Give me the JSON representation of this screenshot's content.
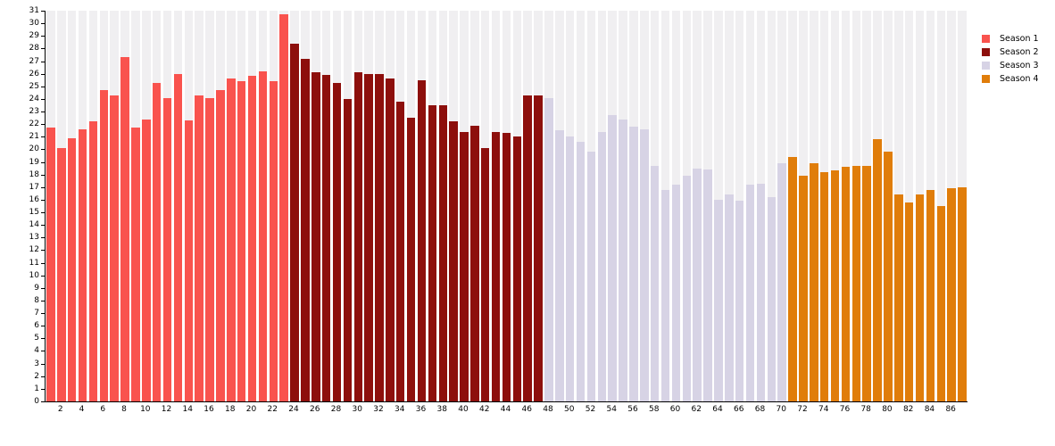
{
  "chart_data": {
    "type": "bar",
    "title": "",
    "xlabel": "",
    "ylabel": "",
    "ylim": [
      0,
      31
    ],
    "episode_range": [
      1,
      87
    ],
    "legend_position": "top-right",
    "y_ticks": [
      0,
      1,
      2,
      3,
      4,
      5,
      6,
      7,
      8,
      9,
      10,
      11,
      12,
      13,
      14,
      15,
      16,
      17,
      18,
      19,
      20,
      21,
      22,
      23,
      24,
      25,
      26,
      27,
      28,
      29,
      30,
      31
    ],
    "x_ticks": [
      2,
      4,
      6,
      8,
      10,
      12,
      14,
      16,
      18,
      20,
      22,
      24,
      26,
      28,
      30,
      32,
      34,
      36,
      38,
      40,
      42,
      44,
      46,
      48,
      50,
      52,
      54,
      56,
      58,
      60,
      62,
      64,
      66,
      68,
      70,
      72,
      74,
      76,
      78,
      80,
      82,
      84,
      86
    ],
    "series": [
      {
        "name": "Season 1",
        "color": "#f9534e",
        "episode_start": 1,
        "values": [
          21.7,
          20.1,
          20.9,
          21.6,
          22.2,
          24.7,
          24.3,
          27.3,
          21.7,
          22.4,
          25.3,
          24.1,
          26.0,
          22.3,
          24.3,
          24.1,
          24.7,
          25.6,
          25.4,
          25.8,
          26.2,
          25.4,
          30.7
        ]
      },
      {
        "name": "Season 2",
        "color": "#8d0f0c",
        "episode_start": 24,
        "values": [
          28.4,
          27.2,
          26.1,
          25.9,
          25.3,
          24.0,
          26.1,
          26.0,
          26.0,
          25.6,
          23.8,
          22.5,
          25.5,
          23.5,
          23.5,
          22.2,
          21.4,
          21.9,
          20.1,
          21.4,
          21.3,
          21.0,
          24.3,
          24.3
        ]
      },
      {
        "name": "Season 3",
        "color": "#d7d3e5",
        "episode_start": 48,
        "values": [
          24.1,
          21.5,
          21.0,
          20.6,
          19.8,
          21.4,
          22.7,
          22.4,
          21.8,
          21.6,
          18.7,
          16.8,
          17.2,
          17.9,
          18.5,
          18.4,
          16.0,
          16.4,
          15.9,
          17.2,
          17.3,
          16.2,
          18.9
        ]
      },
      {
        "name": "Season 4",
        "color": "#e07d0a",
        "episode_start": 71,
        "values": [
          19.4,
          17.9,
          18.9,
          18.2,
          18.3,
          18.6,
          18.7,
          18.7,
          20.8,
          19.8,
          16.4,
          15.8,
          16.4,
          16.8,
          15.5,
          16.9,
          17.0
        ]
      }
    ],
    "colors": {
      "background_stripe": "#f0eff1",
      "axis": "#000000",
      "text": "#000000"
    }
  }
}
